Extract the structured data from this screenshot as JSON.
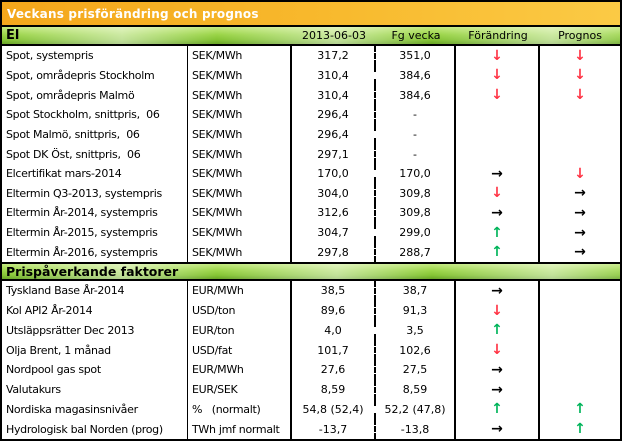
{
  "report": {
    "title": "Veckans prisförändring och prognos"
  },
  "table": {
    "column_headers": {
      "date": "2013-06-03",
      "previous_week": "Fg vecka",
      "change": "Förändring",
      "forecast": "Prognos"
    },
    "sections": [
      {
        "title": "El",
        "rows": [
          {
            "label": "Spot, systempris",
            "unit": "SEK/MWh",
            "cur": "317,2",
            "prev": "351,0",
            "chg": "down",
            "prog": "down"
          },
          {
            "label": "Spot, områdepris Stockholm",
            "unit": "SEK/MWh",
            "cur": "310,4",
            "prev": "384,6",
            "chg": "down",
            "prog": "down"
          },
          {
            "label": "Spot, områdepris Malmö",
            "unit": "SEK/MWh",
            "cur": "310,4",
            "prev": "384,6",
            "chg": "down",
            "prog": "down"
          },
          {
            "label": "Spot Stockholm, snittpris,  06",
            "unit": "SEK/MWh",
            "cur": "296,4",
            "prev": "-",
            "chg": "",
            "prog": ""
          },
          {
            "label": "Spot Malmö, snittpris,  06",
            "unit": "SEK/MWh",
            "cur": "296,4",
            "prev": "-",
            "chg": "",
            "prog": ""
          },
          {
            "label": "Spot DK Öst, snittpris,  06",
            "unit": "SEK/MWh",
            "cur": "297,1",
            "prev": "-",
            "chg": "",
            "prog": ""
          },
          {
            "label": "Elcertifikat mars-2014",
            "unit": "SEK/MWh",
            "cur": "170,0",
            "prev": "170,0",
            "chg": "flat",
            "prog": "down"
          },
          {
            "label": "Eltermin Q3-2013, systempris",
            "unit": "SEK/MWh",
            "cur": "304,0",
            "prev": "309,8",
            "chg": "down",
            "prog": "flat"
          },
          {
            "label": "Eltermin År-2014, systempris",
            "unit": "SEK/MWh",
            "cur": "312,6",
            "prev": "309,8",
            "chg": "flat",
            "prog": "flat"
          },
          {
            "label": "Eltermin År-2015, systempris",
            "unit": "SEK/MWh",
            "cur": "304,7",
            "prev": "299,0",
            "chg": "up",
            "prog": "flat"
          },
          {
            "label": "Eltermin År-2016, systempris",
            "unit": "SEK/MWh",
            "cur": "297,8",
            "prev": "288,7",
            "chg": "up",
            "prog": "flat"
          }
        ]
      },
      {
        "title": "Prispåverkande faktorer",
        "rows": [
          {
            "label": "Tyskland Base År-2014",
            "unit": "EUR/MWh",
            "cur": "38,5",
            "prev": "38,7",
            "chg": "flat",
            "prog": ""
          },
          {
            "label": "Kol API2 År-2014",
            "unit": "USD/ton",
            "cur": "89,6",
            "prev": "91,3",
            "chg": "down",
            "prog": ""
          },
          {
            "label": "Utsläppsrätter Dec 2013",
            "unit": "EUR/ton",
            "cur": "4,0",
            "prev": "3,5",
            "chg": "up",
            "prog": ""
          },
          {
            "label": "Olja Brent, 1 månad",
            "unit": "USD/fat",
            "cur": "101,7",
            "prev": "102,6",
            "chg": "down",
            "prog": ""
          },
          {
            "label": "Nordpool gas spot",
            "unit": "EUR/MWh",
            "cur": "27,6",
            "prev": "27,5",
            "chg": "flat",
            "prog": ""
          },
          {
            "label": "Valutakurs",
            "unit": "EUR/SEK",
            "cur": "8,59",
            "prev": "8,59",
            "chg": "flat",
            "prog": ""
          },
          {
            "label": "Nordiska magasinsnivåer",
            "unit": "%   (normalt)",
            "cur": "54,8 (52,4)",
            "prev": "52,2 (47,8)",
            "chg": "up",
            "prog": "up"
          },
          {
            "label": "Hydrologisk bal Norden (prog)",
            "unit": "TWh jmf normalt",
            "cur": "-13,7",
            "prev": "-13,8",
            "chg": "flat",
            "prog": "up"
          }
        ]
      }
    ]
  },
  "colors": {
    "header_orange": "#f5aa1e",
    "section_green": "#8cc63f",
    "arrow_up_green": "#00b45a",
    "arrow_down_red": "#ff3344",
    "arrow_flat_black": "#000000"
  }
}
